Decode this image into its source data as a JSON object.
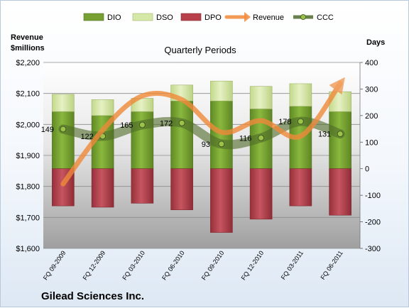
{
  "chart_data": {
    "type": "bar",
    "company": "Gilead Sciences Inc.",
    "subtitle": "Quarterly Periods",
    "categories": [
      "FQ 09-2009",
      "FQ 12-2009",
      "FQ 03-2010",
      "FQ 06-2010",
      "FQ 09-2010",
      "FQ 12-2010",
      "FQ 03-2011",
      "FQ 06-2011"
    ],
    "series": [
      {
        "name": "DIO",
        "type": "bar",
        "axis": "right",
        "color": "#77a033",
        "values": [
          215,
          200,
          215,
          255,
          255,
          225,
          235,
          215
        ]
      },
      {
        "name": "DSO",
        "type": "bar",
        "axis": "right",
        "color": "#d6e8a8",
        "values": [
          65,
          60,
          50,
          60,
          75,
          85,
          85,
          75
        ]
      },
      {
        "name": "DPO",
        "type": "bar",
        "axis": "right",
        "color": "#b8404a",
        "values": [
          -140,
          -145,
          -130,
          -155,
          -240,
          -190,
          -140,
          -175
        ]
      },
      {
        "name": "Revenue",
        "type": "line",
        "axis": "left",
        "color": "#f08a3a",
        "values": [
          1808,
          1982,
          2092,
          2080,
          1975,
          2012,
          1962,
          2132
        ]
      },
      {
        "name": "CCC",
        "type": "line",
        "axis": "right",
        "color": "#4e6b2a",
        "values": [
          149,
          122,
          165,
          172,
          93,
          116,
          178,
          131
        ]
      }
    ],
    "left_axis": {
      "title_line1": "Revenue",
      "title_line2": "$millions",
      "min": 1600,
      "max": 2200,
      "step": 100,
      "tick_labels": [
        "$1,600",
        "$1,700",
        "$1,800",
        "$1,900",
        "$2,000",
        "$2,100",
        "$2,200"
      ]
    },
    "right_axis": {
      "title": "Days",
      "min": -300,
      "max": 400,
      "step": 100,
      "tick_labels": [
        "-300",
        "-200",
        "-100",
        "0",
        "100",
        "200",
        "300",
        "400"
      ]
    },
    "legend_position": "top",
    "grid": true
  }
}
